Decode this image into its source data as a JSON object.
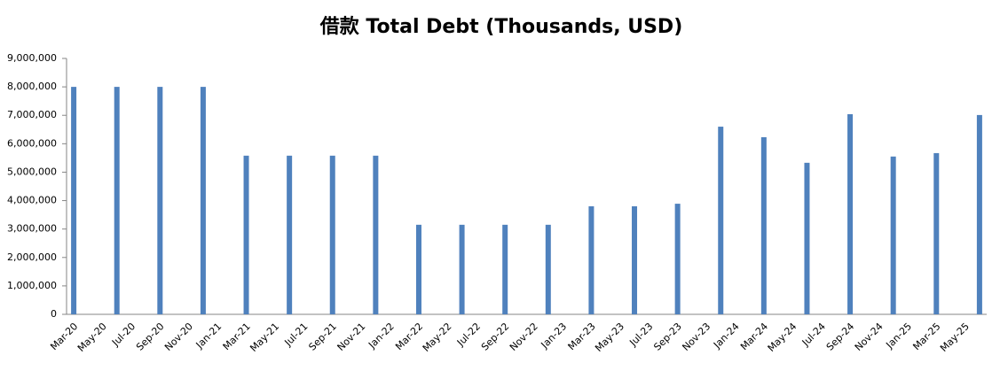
{
  "chart_data": {
    "type": "bar",
    "title": "借款 Total Debt (Thousands, USD)",
    "categories": [
      "Mar-20",
      null,
      "May-20",
      null,
      "Jul-20",
      null,
      "Sep-20",
      null,
      "Nov-20",
      null,
      "Jan-21",
      null,
      "Mar-21",
      null,
      "May-21",
      null,
      "Jul-21",
      null,
      "Sep-21",
      null,
      "Nov-21",
      null,
      "Jan-22",
      null,
      "Mar-22",
      null,
      "May-22",
      null,
      "Jul-22",
      null,
      "Sep-22",
      null,
      "Nov-22",
      null,
      "Jan-23",
      null,
      "Mar-23",
      null,
      "May-23",
      null,
      "Jul-23",
      null,
      "Sep-23",
      null,
      "Nov-23",
      null,
      "Jan-24",
      null,
      "Mar-24",
      null,
      "May-24",
      null,
      "Jul-24",
      null,
      "Sep-24",
      null,
      "Nov-24",
      null,
      "Jan-25",
      null,
      "Mar-25",
      null,
      "May-25",
      null
    ],
    "values": [
      8000000,
      null,
      null,
      8000000,
      null,
      null,
      8000000,
      null,
      null,
      8000000,
      null,
      null,
      5580000,
      null,
      null,
      5580000,
      null,
      null,
      5580000,
      null,
      null,
      5580000,
      null,
      null,
      3150000,
      null,
      null,
      3150000,
      null,
      null,
      3150000,
      null,
      null,
      3150000,
      null,
      null,
      3800000,
      null,
      null,
      3800000,
      null,
      null,
      3890000,
      null,
      null,
      6600000,
      null,
      null,
      6230000,
      null,
      null,
      5330000,
      null,
      null,
      7040000,
      null,
      null,
      5550000,
      null,
      null,
      5670000,
      null,
      null,
      7010000
    ],
    "color": "#4f81bd",
    "ylim": [
      0,
      9000000
    ],
    "yticks": [
      0,
      {
        "value": 1000000,
        "label": "1,000,000"
      },
      {
        "value": 2000000,
        "label": "2,000,000"
      },
      {
        "value": 3000000,
        "label": "3,000,000"
      },
      {
        "value": 4000000,
        "label": "4,000,000"
      },
      {
        "value": 5000000,
        "label": "5,000,000"
      },
      {
        "value": 6000000,
        "label": "6,000,000"
      },
      {
        "value": 7000000,
        "label": "7,000,000"
      },
      {
        "value": 8000000,
        "label": "8,000,000"
      },
      {
        "value": 9000000,
        "label": "9,000,000"
      }
    ]
  }
}
